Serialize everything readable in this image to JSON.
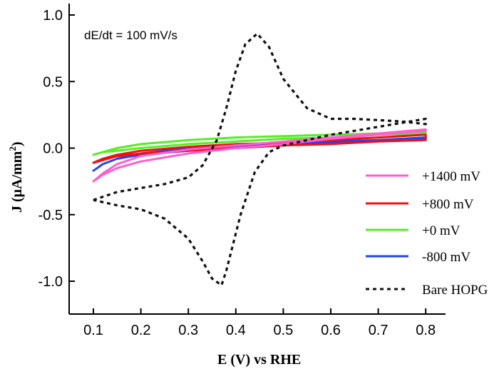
{
  "chart_data": {
    "type": "line",
    "title": "",
    "xlabel": "E (V) vs RHE",
    "ylabel": "J (μA/mm²)",
    "ylabel_main": "J (μA/mm",
    "ylabel_sup": "2",
    "ylabel_close": ")",
    "annotation": "dE/dt = 100 mV/s",
    "xlim": [
      0.05,
      0.82
    ],
    "ylim": [
      -1.25,
      1.05
    ],
    "xticks": [
      0.1,
      0.2,
      0.3,
      0.4,
      0.5,
      0.6,
      0.7,
      0.8
    ],
    "xtick_labels": [
      "0.1",
      "0.2",
      "0.3",
      "0.4",
      "0.5",
      "0.6",
      "0.7",
      "0.8"
    ],
    "yticks": [
      1.0,
      0.5,
      0.0,
      -0.5,
      -1.0
    ],
    "ytick_labels": [
      "1.0",
      "0.5",
      "0.0",
      "-0.5",
      "-1.0"
    ],
    "grid": false,
    "legend_position": "bottom-right",
    "series": [
      {
        "name": "+1400 mV",
        "color": "#ff5fd0",
        "dash": "solid",
        "x": [
          0.1,
          0.12,
          0.15,
          0.2,
          0.3,
          0.4,
          0.5,
          0.6,
          0.7,
          0.8,
          0.8,
          0.7,
          0.6,
          0.5,
          0.4,
          0.3,
          0.2,
          0.15,
          0.12,
          0.1
        ],
        "y": [
          -0.25,
          -0.19,
          -0.12,
          -0.06,
          -0.01,
          0.02,
          0.05,
          0.08,
          0.11,
          0.14,
          0.13,
          0.1,
          0.07,
          0.03,
          0.0,
          -0.04,
          -0.1,
          -0.15,
          -0.2,
          -0.25
        ]
      },
      {
        "name": "+800 mV",
        "color": "#ee1111",
        "dash": "solid",
        "x": [
          0.1,
          0.12,
          0.15,
          0.2,
          0.3,
          0.4,
          0.5,
          0.6,
          0.7,
          0.8,
          0.8,
          0.7,
          0.6,
          0.5,
          0.4,
          0.3,
          0.2,
          0.15,
          0.12,
          0.1
        ],
        "y": [
          -0.11,
          -0.08,
          -0.05,
          -0.02,
          0.01,
          0.03,
          0.04,
          0.06,
          0.08,
          0.1,
          0.06,
          0.05,
          0.03,
          0.02,
          0.0,
          -0.02,
          -0.04,
          -0.06,
          -0.09,
          -0.11
        ]
      },
      {
        "name": "+0 mV",
        "color": "#55ee22",
        "dash": "solid",
        "x": [
          0.1,
          0.12,
          0.15,
          0.2,
          0.3,
          0.4,
          0.5,
          0.6,
          0.7,
          0.8,
          0.8,
          0.7,
          0.6,
          0.5,
          0.4,
          0.3,
          0.2,
          0.15,
          0.12,
          0.1
        ],
        "y": [
          -0.05,
          -0.03,
          0.0,
          0.03,
          0.06,
          0.08,
          0.09,
          0.1,
          0.11,
          0.12,
          0.11,
          0.1,
          0.08,
          0.07,
          0.05,
          0.03,
          0.0,
          -0.02,
          -0.03,
          -0.05
        ]
      },
      {
        "name": "-800 mV",
        "color": "#2244ee",
        "dash": "solid",
        "x": [
          0.1,
          0.12,
          0.15,
          0.2,
          0.3,
          0.4,
          0.5,
          0.6,
          0.7,
          0.8,
          0.8,
          0.7,
          0.6,
          0.5,
          0.4,
          0.3,
          0.2,
          0.15,
          0.12,
          0.1
        ],
        "y": [
          -0.17,
          -0.12,
          -0.08,
          -0.04,
          0.0,
          0.02,
          0.04,
          0.05,
          0.06,
          0.08,
          0.07,
          0.06,
          0.04,
          0.03,
          0.01,
          -0.02,
          -0.05,
          -0.08,
          -0.12,
          -0.17
        ]
      },
      {
        "name": "Bare HOPG",
        "color": "#111111",
        "dash": "dotted",
        "x": [
          0.1,
          0.15,
          0.2,
          0.25,
          0.3,
          0.33,
          0.36,
          0.38,
          0.4,
          0.42,
          0.445,
          0.47,
          0.5,
          0.55,
          0.6,
          0.65,
          0.7,
          0.75,
          0.8,
          0.8,
          0.75,
          0.7,
          0.65,
          0.6,
          0.55,
          0.5,
          0.47,
          0.44,
          0.41,
          0.38,
          0.37,
          0.35,
          0.33,
          0.3,
          0.25,
          0.2,
          0.15,
          0.1
        ],
        "y": [
          -0.39,
          -0.33,
          -0.3,
          -0.27,
          -0.22,
          -0.13,
          0.06,
          0.3,
          0.58,
          0.78,
          0.86,
          0.76,
          0.52,
          0.3,
          0.22,
          0.22,
          0.21,
          0.2,
          0.18,
          0.22,
          0.19,
          0.16,
          0.13,
          0.1,
          0.06,
          0.02,
          -0.03,
          -0.18,
          -0.5,
          -0.92,
          -1.03,
          -0.98,
          -0.85,
          -0.68,
          -0.53,
          -0.46,
          -0.43,
          -0.39
        ]
      }
    ]
  }
}
